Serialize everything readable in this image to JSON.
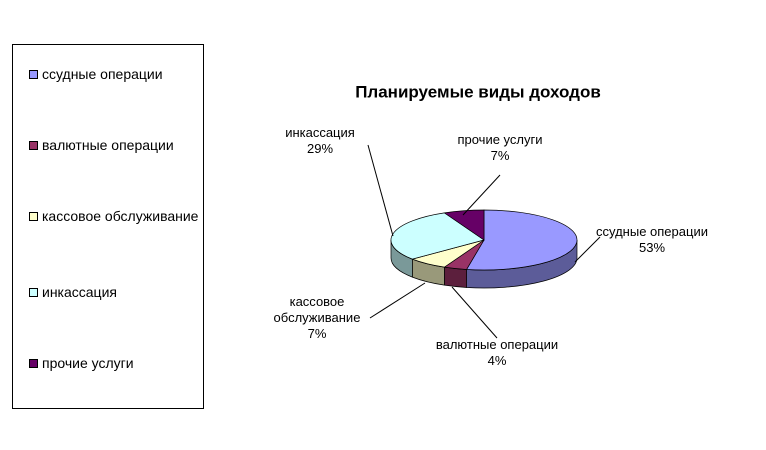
{
  "chart_data": {
    "type": "pie3d",
    "title": "Планируемые виды доходов",
    "categories": [
      "ссудные операции",
      "валютные операции",
      "кассовое обслуживание",
      "инкассация",
      "прочие услуги"
    ],
    "values": [
      53,
      4,
      7,
      29,
      7
    ],
    "value_labels": [
      "53%",
      "4%",
      "7%",
      "29%",
      "7%"
    ],
    "colors": [
      "#9999ff",
      "#993366",
      "#ffffcc",
      "#ccffff",
      "#660066"
    ],
    "legend": "left"
  }
}
